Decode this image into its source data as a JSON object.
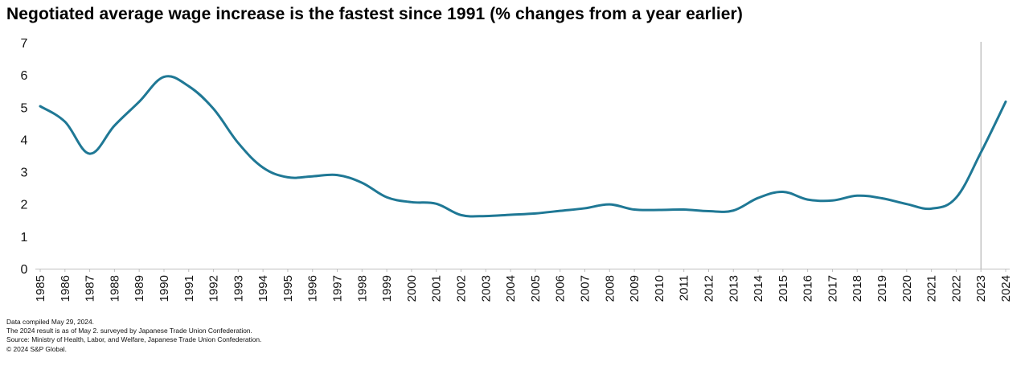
{
  "chart_data": {
    "type": "line",
    "title": "Negotiated average wage increase is the fastest since 1991 (% changes from a year earlier)",
    "xlabel": "",
    "ylabel": "",
    "ylim": [
      0,
      7
    ],
    "yticks": [
      0,
      1,
      2,
      3,
      4,
      5,
      6,
      7
    ],
    "categories": [
      "1985",
      "1986",
      "1987",
      "1988",
      "1989",
      "1990",
      "1991",
      "1992",
      "1993",
      "1994",
      "1995",
      "1996",
      "1997",
      "1998",
      "1999",
      "2000",
      "2001",
      "2002",
      "2003",
      "2004",
      "2005",
      "2006",
      "2007",
      "2008",
      "2009",
      "2010",
      "2011",
      "2012",
      "2013",
      "2014",
      "2015",
      "2016",
      "2017",
      "2018",
      "2019",
      "2020",
      "2021",
      "2022",
      "2023",
      "2024"
    ],
    "series": [
      {
        "values": [
          5.03,
          4.55,
          3.56,
          4.43,
          5.17,
          5.94,
          5.65,
          4.95,
          3.89,
          3.13,
          2.83,
          2.86,
          2.9,
          2.66,
          2.21,
          2.06,
          2.01,
          1.66,
          1.63,
          1.67,
          1.71,
          1.79,
          1.87,
          1.99,
          1.83,
          1.82,
          1.83,
          1.78,
          1.8,
          2.19,
          2.38,
          2.14,
          2.11,
          2.26,
          2.18,
          2.0,
          1.86,
          2.2,
          3.6,
          5.17
        ],
        "color": "#1f7895"
      }
    ],
    "marker_line_after": "2023",
    "grid": false,
    "legend": "none"
  },
  "footnotes": [
    "Data compiled May 29, 2024.",
    "The 2024 result is as of May 2. surveyed by Japanese Trade Union Confederation.",
    "Source: Ministry of Health, Labor, and Welfare, Japanese Trade Union Confederation.",
    "© 2024 S&P Global."
  ]
}
